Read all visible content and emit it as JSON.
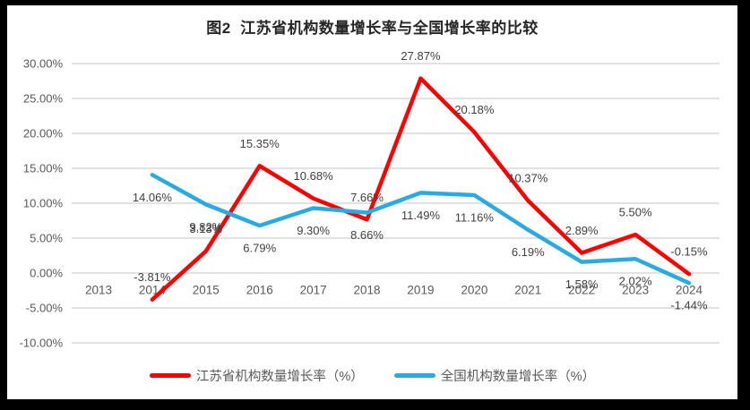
{
  "title": "图2  江苏省机构数量增长率与全国增长率的比较",
  "colors": {
    "frame_border": "#000000",
    "chart_background": "#ffffff",
    "grid": "#D9D9D9",
    "tick_text": "#595959",
    "data_label_text": "#404040",
    "title_text": "#262626",
    "legend_text": "#595959",
    "jiangsu_red": "#FE0000",
    "national_blue": "#29ABE2"
  },
  "chart_data": {
    "type": "line",
    "title": "图2  江苏省机构数量增长率与全国增长率的比较",
    "xlabel": "",
    "ylabel": "",
    "grid": true,
    "legend_position": "bottom",
    "categories": [
      "2013",
      "2014",
      "2015",
      "2016",
      "2017",
      "2018",
      "2019",
      "2020",
      "2021",
      "2022",
      "2023",
      "2024"
    ],
    "y_axis": {
      "min": -10,
      "max": 30,
      "step": 5,
      "tick_labels": [
        "30.00%",
        "25.00%",
        "20.00%",
        "15.00%",
        "10.00%",
        "5.00%",
        "0.00%",
        "-5.00%",
        "-10.00%"
      ]
    },
    "series": [
      {
        "name": "江苏省机构数量增长率（%）",
        "color": "#FE0000",
        "label_position": "above",
        "values": [
          null,
          -3.81,
          3.13,
          15.35,
          10.68,
          7.66,
          27.87,
          20.18,
          10.37,
          2.89,
          5.5,
          -0.15
        ],
        "labels": [
          "",
          "-3.81%",
          "3.13%",
          "15.35%",
          "10.68%",
          "7.66%",
          "27.87%",
          "20.18%",
          "10.37%",
          "2.89%",
          "5.50%",
          "-0.15%"
        ]
      },
      {
        "name": "全国机构数量增长率（%）",
        "color": "#29ABE2",
        "label_position": "below",
        "values": [
          null,
          14.06,
          9.82,
          6.79,
          9.3,
          8.66,
          11.49,
          11.16,
          6.19,
          1.58,
          2.02,
          -1.44
        ],
        "labels": [
          "",
          "14.06%",
          "9.82%",
          "6.79%",
          "9.30%",
          "8.66%",
          "11.49%",
          "11.16%",
          "6.19%",
          "1.58%",
          "2.02%",
          "-1.44%"
        ]
      }
    ]
  }
}
